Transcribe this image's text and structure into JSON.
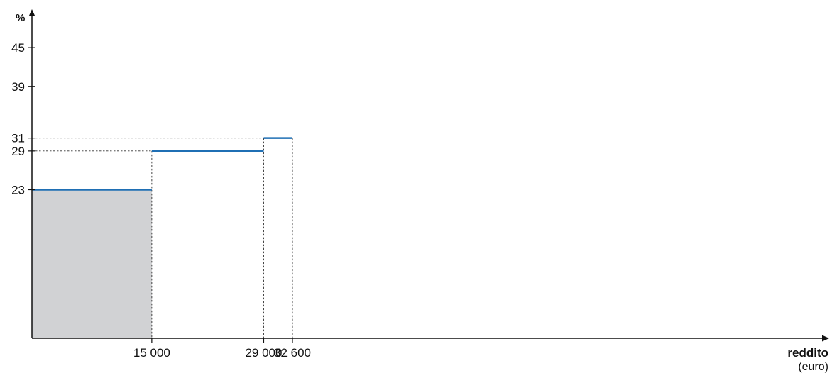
{
  "chart_data": {
    "type": "line",
    "ylabel": "%",
    "xlabel": "reddito",
    "xlabel_unit": "(euro)",
    "y_ticks": [
      {
        "value": 45,
        "label": "45"
      },
      {
        "value": 39,
        "label": "39"
      },
      {
        "value": 31,
        "label": "31"
      },
      {
        "value": 29,
        "label": "29"
      },
      {
        "value": 23,
        "label": "23"
      }
    ],
    "x_ticks": [
      {
        "value": 15000,
        "label": "15 000"
      },
      {
        "value": 29000,
        "label": "29 000"
      },
      {
        "value": 32600,
        "label": "32 600"
      }
    ],
    "series": [
      {
        "segments": [
          {
            "x_start": 0,
            "x_end": 15000,
            "y": 23
          },
          {
            "x_start": 15000,
            "x_end": 29000,
            "y": 29
          },
          {
            "x_start": 29000,
            "x_end": 32600,
            "y": 31
          }
        ]
      }
    ],
    "shaded_region": {
      "x_start": 0,
      "x_end": 15000,
      "y": 23
    },
    "xlim": [
      0,
      100000
    ],
    "ylim": [
      0,
      50
    ],
    "colors": {
      "line": "#1f6fb4",
      "shade": "#d1d2d4",
      "axis": "#111111",
      "guide": "#333333"
    }
  }
}
